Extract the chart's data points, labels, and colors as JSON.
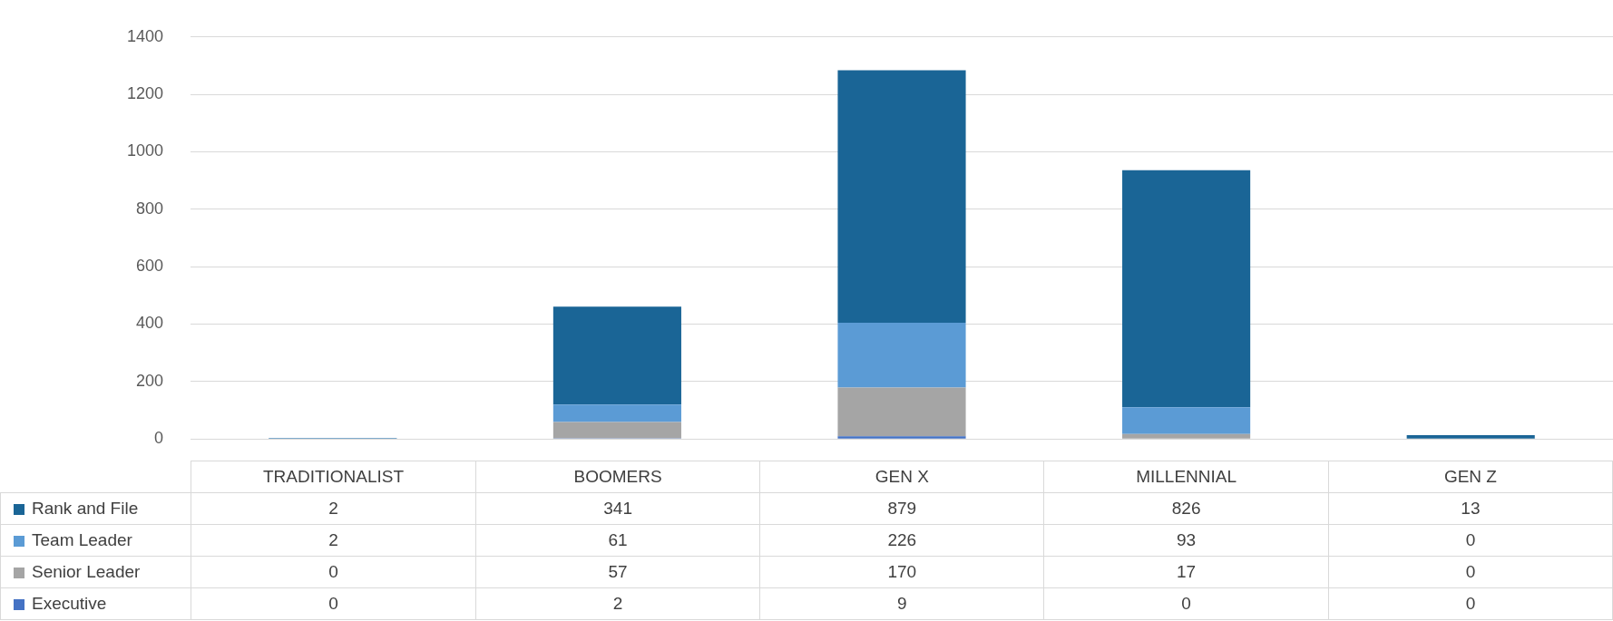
{
  "chart_data": {
    "type": "bar",
    "stacked": true,
    "categories": [
      "TRADITIONALIST",
      "BOOMERS",
      "GEN X",
      "MILLENNIAL",
      "GEN Z"
    ],
    "series": [
      {
        "name": "Executive",
        "color": "#4472c4",
        "values": [
          0,
          2,
          9,
          0,
          0
        ]
      },
      {
        "name": "Senior Leader",
        "color": "#a5a5a5",
        "values": [
          0,
          57,
          170,
          17,
          0
        ]
      },
      {
        "name": "Team Leader",
        "color": "#5b9bd5",
        "values": [
          2,
          61,
          226,
          93,
          0
        ]
      },
      {
        "name": "Rank and File",
        "color": "#1a6596",
        "values": [
          2,
          341,
          879,
          826,
          13
        ]
      }
    ],
    "ylim": [
      0,
      1400
    ],
    "yticks": [
      0,
      200,
      400,
      600,
      800,
      1000,
      1200,
      1400
    ],
    "grid": "y",
    "legend": "bottom",
    "data_labels": true
  }
}
